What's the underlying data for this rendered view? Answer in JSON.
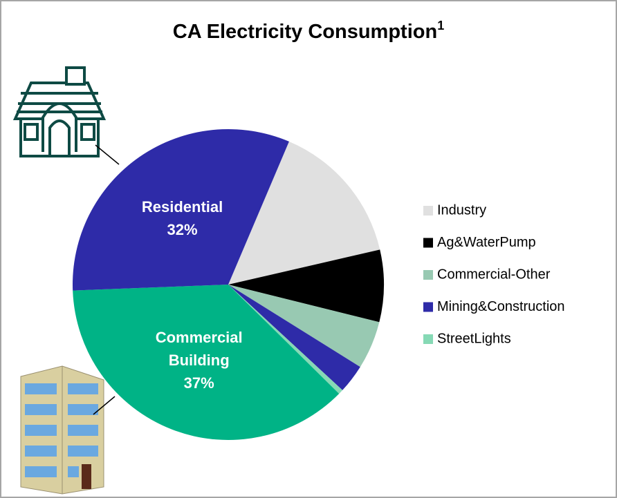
{
  "chart_data": {
    "type": "pie",
    "title": "CA Electricity Consumption",
    "title_footnote": "1",
    "categories": [
      "Industry",
      "Ag&WaterPump",
      "Commercial-Other",
      "Mining&Construction",
      "StreetLights",
      "Commercial Building",
      "Residential"
    ],
    "values": [
      15,
      7.5,
      5,
      3,
      0.5,
      37,
      32
    ],
    "value_labels": [
      null,
      null,
      null,
      null,
      null,
      "37%",
      "32%"
    ],
    "colors": [
      "#e0e0e0",
      "#000000",
      "#98c9b2",
      "#2e2ba8",
      "#86d9b5",
      "#00b386",
      "#2e2ba8"
    ],
    "legend": "right"
  }
}
